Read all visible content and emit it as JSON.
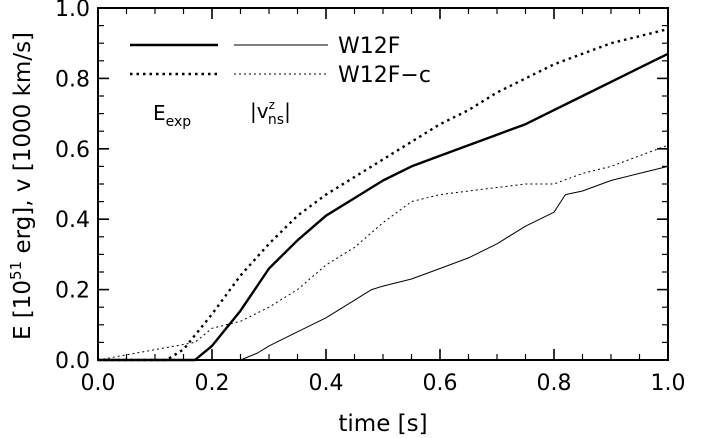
{
  "chart_data": {
    "type": "line",
    "xlabel": "time [s]",
    "ylabel": "E [10^51 erg], v [1000 km/s]",
    "ylabel_parts": {
      "pre": "E [10",
      "sup": "51",
      "post": " erg], v [1000 km/s]"
    },
    "xlim": [
      0.0,
      1.0
    ],
    "ylim": [
      0.0,
      1.0
    ],
    "xticks": [
      0.0,
      0.2,
      0.4,
      0.6,
      0.8,
      1.0
    ],
    "xtick_labels": [
      "0.0",
      "0.2",
      "0.4",
      "0.6",
      "0.8",
      "1.0"
    ],
    "yticks": [
      0.0,
      0.2,
      0.4,
      0.6,
      0.8,
      1.0
    ],
    "ytick_labels": [
      "0.0",
      "0.2",
      "0.4",
      "0.6",
      "0.8",
      "1.0"
    ],
    "grid": false,
    "legend": {
      "placement": "top-left",
      "entries": [
        {
          "label": "W12F",
          "style": "solid"
        },
        {
          "label": "W12F−c",
          "style": "dotted"
        }
      ],
      "column_labels": {
        "left": {
          "base": "E",
          "sub": "exp"
        },
        "right": {
          "prefix": "|v",
          "sup": "z",
          "sub": "ns",
          "suffix": "|"
        }
      }
    },
    "series": [
      {
        "name": "W12F",
        "quantity": "E_exp",
        "style": "solid",
        "width": "thick",
        "x": [
          0.0,
          0.17,
          0.2,
          0.25,
          0.3,
          0.35,
          0.4,
          0.45,
          0.5,
          0.55,
          0.6,
          0.65,
          0.7,
          0.75,
          0.8,
          0.85,
          0.9,
          0.95,
          1.0
        ],
        "y": [
          0.0,
          0.0,
          0.04,
          0.14,
          0.26,
          0.34,
          0.41,
          0.46,
          0.51,
          0.55,
          0.58,
          0.61,
          0.64,
          0.67,
          0.71,
          0.75,
          0.79,
          0.83,
          0.87
        ]
      },
      {
        "name": "W12F",
        "quantity": "|v_ns^z|",
        "style": "solid",
        "width": "thin",
        "x": [
          0.0,
          0.25,
          0.28,
          0.3,
          0.35,
          0.4,
          0.45,
          0.48,
          0.5,
          0.55,
          0.6,
          0.65,
          0.7,
          0.75,
          0.8,
          0.82,
          0.85,
          0.9,
          0.95,
          1.0
        ],
        "y": [
          0.0,
          0.0,
          0.02,
          0.04,
          0.08,
          0.12,
          0.17,
          0.2,
          0.21,
          0.23,
          0.26,
          0.29,
          0.33,
          0.38,
          0.42,
          0.47,
          0.48,
          0.51,
          0.53,
          0.55
        ]
      },
      {
        "name": "W12F−c",
        "quantity": "E_exp",
        "style": "dotted",
        "width": "thick",
        "x": [
          0.0,
          0.12,
          0.15,
          0.2,
          0.25,
          0.3,
          0.35,
          0.4,
          0.45,
          0.5,
          0.55,
          0.6,
          0.65,
          0.7,
          0.75,
          0.8,
          0.85,
          0.9,
          0.95,
          1.0
        ],
        "y": [
          0.0,
          0.0,
          0.03,
          0.13,
          0.24,
          0.33,
          0.41,
          0.47,
          0.52,
          0.57,
          0.62,
          0.67,
          0.71,
          0.76,
          0.8,
          0.84,
          0.87,
          0.9,
          0.92,
          0.94
        ]
      },
      {
        "name": "W12F−c",
        "quantity": "|v_ns^z|",
        "style": "dotted",
        "width": "thin",
        "x": [
          0.0,
          0.17,
          0.2,
          0.25,
          0.3,
          0.35,
          0.4,
          0.45,
          0.5,
          0.55,
          0.6,
          0.65,
          0.7,
          0.75,
          0.8,
          0.85,
          0.9,
          0.95,
          1.0
        ],
        "y": [
          0.0,
          0.05,
          0.09,
          0.11,
          0.15,
          0.2,
          0.27,
          0.32,
          0.39,
          0.45,
          0.47,
          0.48,
          0.49,
          0.5,
          0.5,
          0.53,
          0.55,
          0.58,
          0.61
        ]
      }
    ]
  }
}
